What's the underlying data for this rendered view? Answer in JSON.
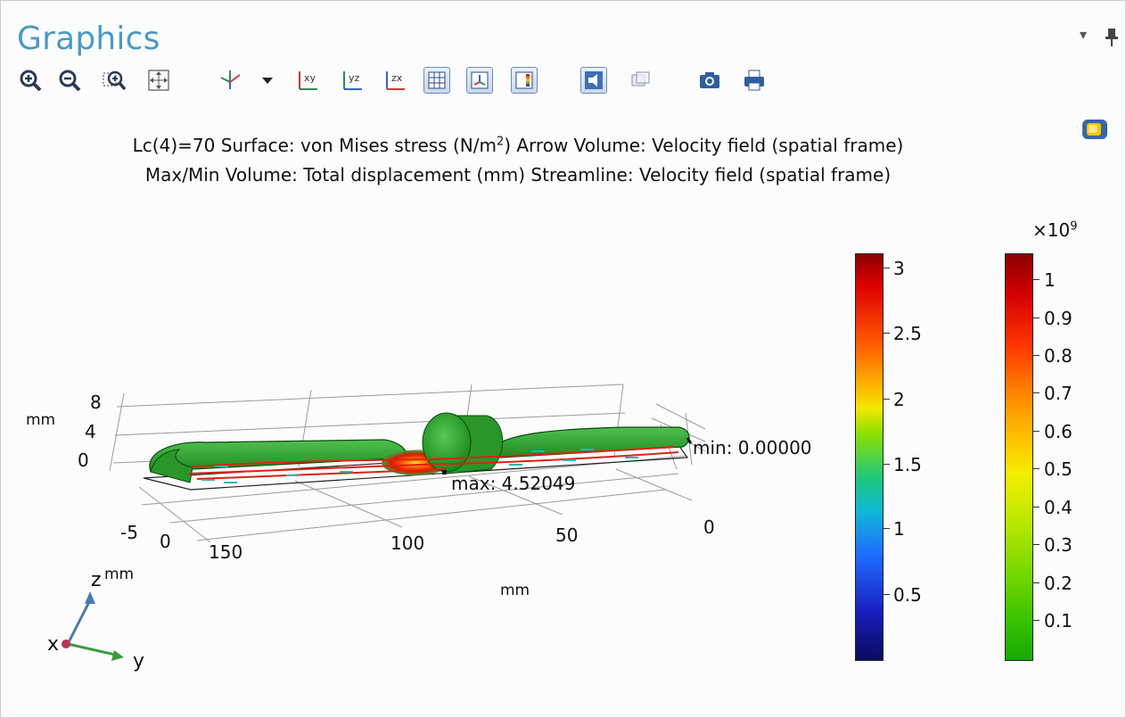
{
  "window": {
    "title": "Graphics",
    "menu_glyph": "▾",
    "pin_glyph": "📌"
  },
  "toolbar": {
    "items": [
      {
        "icon": "zoom-in-icon"
      },
      {
        "icon": "zoom-out-icon"
      },
      {
        "icon": "zoom-box-icon"
      },
      {
        "icon": "zoom-extents-icon"
      },
      {
        "icon": "view-axes-icon"
      },
      {
        "icon": "dropdown-arrow-icon"
      },
      {
        "icon": "xy-plane-icon",
        "label": "xy"
      },
      {
        "icon": "yz-plane-icon",
        "label": "yz"
      },
      {
        "icon": "zx-plane-icon",
        "label": "zx"
      },
      {
        "icon": "show-grid-icon"
      },
      {
        "icon": "show-axis-orientation-icon"
      },
      {
        "icon": "show-legends-icon"
      },
      {
        "icon": "lighting-icon"
      },
      {
        "icon": "transparency-icon"
      },
      {
        "icon": "camera-icon"
      },
      {
        "icon": "print-icon"
      }
    ]
  },
  "plot": {
    "title_line1_prefix": "Lc(4)=70   Surface: von Mises stress (N/m",
    "title_line1_sup": "2",
    "title_line1_suffix": ")  Arrow Volume: Velocity field (spatial frame)",
    "title_line2": "Max/Min Volume: Total displacement (mm)  Streamline: Velocity field (spatial frame)",
    "axis_unit_left": "mm",
    "z_ticks": [
      "8",
      "4",
      "0"
    ],
    "y_ticks_left": [
      "-5",
      "0"
    ],
    "x_ticks": [
      "150",
      "100",
      "50",
      "0"
    ],
    "bottom_unit": "mm",
    "max_label": "max: 4.52049",
    "min_label": "min: 0.00000",
    "triad": {
      "z": "z",
      "z_unit": "mm",
      "x": "x",
      "y": "y"
    }
  },
  "colorbar_displacement": {
    "labels": [
      "3",
      "2.5",
      "2",
      "1.5",
      "1",
      "0.5"
    ],
    "values": [
      3,
      2.5,
      2,
      1.5,
      1,
      0.5
    ]
  },
  "colorbar_stress": {
    "multiplier_prefix": "×10",
    "multiplier_exp": "9",
    "labels": [
      "1",
      "0.9",
      "0.8",
      "0.7",
      "0.6",
      "0.5",
      "0.4",
      "0.3",
      "0.2",
      "0.1"
    ],
    "values": [
      1,
      0.9,
      0.8,
      0.7,
      0.6,
      0.5,
      0.4,
      0.3,
      0.2,
      0.1
    ]
  }
}
